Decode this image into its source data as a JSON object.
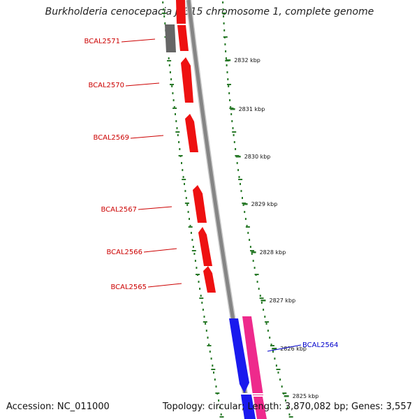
{
  "title": "Burkholderia cenocepacia J2315 chromosome 1, complete genome",
  "footer": {
    "accession_label": "Accession:",
    "accession": "NC_011000",
    "topology_label": "Topology:",
    "topology": "circular",
    "length_label": "Length:",
    "length": "3,870,082 bp",
    "genes_label": "Genes:",
    "genes": "3,557"
  },
  "colors": {
    "reverse_gene": "#ee1111",
    "forward_gene_blue": "#1a1aee",
    "forward_gene_pink": "#ee2a8c",
    "other_feature": "#666666",
    "backbone": "#888888",
    "ruler": "#2a7a2a",
    "label_reverse": "#cc0000",
    "label_forward": "#0000cc"
  },
  "ruler_labels": [
    "2832 kbp",
    "2831 kbp",
    "2830 kbp",
    "2829 kbp",
    "2828 kbp",
    "2827 kbp",
    "2826 kbp",
    "2825 kbp"
  ],
  "gene_labels": {
    "reverse": [
      "BCAL2571",
      "BCAL2570",
      "BCAL2569",
      "BCAL2567",
      "BCAL2566",
      "BCAL2565"
    ],
    "forward": [
      "BCAL2564"
    ]
  }
}
